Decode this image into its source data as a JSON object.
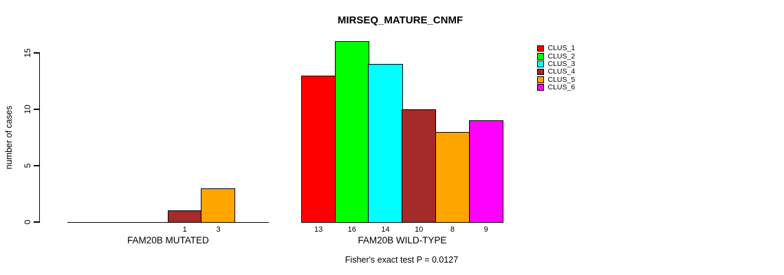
{
  "title": "MIRSEQ_MATURE_CNMF",
  "ylabel": "number of cases",
  "footnote": "Fisher's exact test P = 0.0127",
  "legend": {
    "items": [
      {
        "label": "CLUS_1",
        "color": "#FF0000"
      },
      {
        "label": "CLUS_2",
        "color": "#00FF00"
      },
      {
        "label": "CLUS_3",
        "color": "#00FFFF"
      },
      {
        "label": "CLUS_4",
        "color": "#A52A2A"
      },
      {
        "label": "CLUS_5",
        "color": "#FFA500"
      },
      {
        "label": "CLUS_6",
        "color": "#FF00FF"
      }
    ]
  },
  "chart_data": {
    "type": "bar",
    "title": "MIRSEQ_MATURE_CNMF",
    "ylabel": "number of cases",
    "xlabel": "",
    "ylim": [
      0,
      16
    ],
    "yticks": [
      0,
      5,
      10,
      15
    ],
    "grid": false,
    "legend_position": "top-right",
    "categories": [
      "CLUS_1",
      "CLUS_2",
      "CLUS_3",
      "CLUS_4",
      "CLUS_5",
      "CLUS_6"
    ],
    "colors": [
      "#FF0000",
      "#00FF00",
      "#00FFFF",
      "#A52A2A",
      "#FFA500",
      "#FF00FF"
    ],
    "groups": [
      {
        "label": "FAM20B MUTATED",
        "values": [
          0,
          0,
          0,
          1,
          3,
          0
        ]
      },
      {
        "label": "FAM20B WILD-TYPE",
        "values": [
          13,
          16,
          14,
          10,
          8,
          9
        ]
      }
    ],
    "value_labels": "shown under each non-zero bar",
    "annotation": "Fisher's exact test P = 0.0127"
  }
}
